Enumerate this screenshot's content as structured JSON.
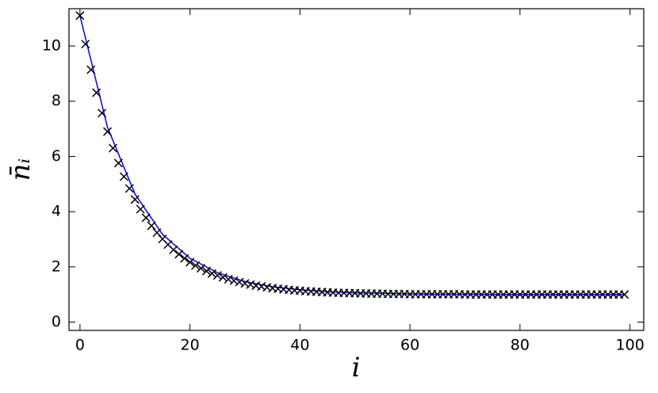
{
  "chart_data": {
    "type": "scatter",
    "xlabel": "i",
    "ylabel": "n̄ᵢ",
    "xlim": [
      -2,
      102.5
    ],
    "ylim": [
      -0.3,
      11.35
    ],
    "xticks": [
      0,
      20,
      40,
      60,
      80,
      100
    ],
    "yticks": [
      0,
      2,
      4,
      6,
      8,
      10
    ],
    "series": [
      {
        "style": "line",
        "color": "#0000ff",
        "x": [
          0,
          5,
          10,
          15,
          20,
          25,
          30,
          35,
          40,
          45,
          50,
          55,
          60,
          65,
          70,
          75,
          80,
          85,
          90,
          95,
          99
        ],
        "values": [
          11.1,
          7.06,
          4.64,
          3.18,
          2.31,
          1.79,
          1.47,
          1.28,
          1.17,
          1.1,
          1.06,
          1.04,
          1.02,
          1.01,
          1.01,
          1.0,
          1.0,
          1.0,
          1.0,
          1.0,
          1.0
        ]
      },
      {
        "style": "marker",
        "color": "#000000",
        "x": [
          0,
          1,
          2,
          3,
          4,
          5,
          6,
          7,
          8,
          9,
          10,
          11,
          12,
          13,
          14,
          15,
          16,
          17,
          18,
          19,
          20,
          21,
          22,
          23,
          24,
          25,
          26,
          27,
          28,
          29,
          30,
          31,
          32,
          33,
          34,
          35,
          36,
          37,
          38,
          39,
          40,
          41,
          42,
          43,
          44,
          45,
          46,
          47,
          48,
          49,
          50,
          51,
          52,
          53,
          54,
          55,
          56,
          57,
          58,
          59,
          60,
          61,
          62,
          63,
          64,
          65,
          66,
          67,
          68,
          69,
          70,
          71,
          72,
          73,
          74,
          75,
          76,
          77,
          78,
          79,
          80,
          81,
          82,
          83,
          84,
          85,
          86,
          87,
          88,
          89,
          90,
          91,
          92,
          93,
          94,
          95,
          96,
          97,
          98,
          99
        ],
        "values": [
          11.1,
          10.07,
          9.14,
          8.31,
          7.57,
          6.9,
          6.3,
          5.76,
          5.27,
          4.84,
          4.44,
          4.09,
          3.78,
          3.49,
          3.24,
          3.01,
          2.81,
          2.62,
          2.46,
          2.31,
          2.17,
          2.05,
          1.95,
          1.85,
          1.76,
          1.69,
          1.62,
          1.55,
          1.5,
          1.45,
          1.4,
          1.36,
          1.32,
          1.29,
          1.26,
          1.23,
          1.21,
          1.19,
          1.17,
          1.15,
          1.14,
          1.12,
          1.11,
          1.1,
          1.09,
          1.08,
          1.07,
          1.06,
          1.06,
          1.05,
          1.05,
          1.04,
          1.04,
          1.03,
          1.03,
          1.03,
          1.02,
          1.02,
          1.02,
          1.02,
          1.01,
          1.01,
          1.01,
          1.01,
          1.01,
          1.01,
          1.01,
          1.01,
          1.01,
          1.01,
          1.0,
          1.0,
          1.0,
          1.0,
          1.0,
          1.0,
          1.0,
          1.0,
          1.0,
          1.0,
          1.0,
          1.0,
          1.0,
          1.0,
          1.0,
          1.0,
          1.0,
          1.0,
          1.0,
          1.0,
          1.0,
          1.0,
          1.0,
          1.0,
          1.0,
          1.0,
          1.0,
          1.0,
          1.0,
          1.0
        ]
      }
    ]
  }
}
